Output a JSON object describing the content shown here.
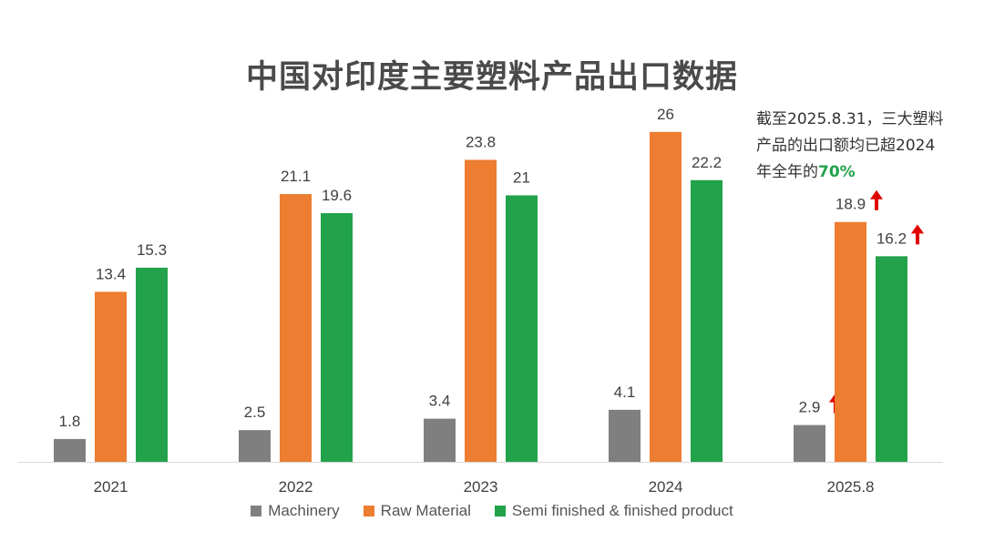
{
  "title": "中国对印度主要塑料产品出口数据",
  "annotation": {
    "line1": "截至2025.8.31，三大塑料",
    "line2": "产品的出口额均已超2024",
    "line3_prefix": "年全年的",
    "highlight": "70%"
  },
  "colors": {
    "machinery": "#7f7f7f",
    "raw_material": "#ed7d31",
    "semi_finished": "#22a24a",
    "arrow": "#e00000",
    "highlight": "#22a24a"
  },
  "chart_data": {
    "type": "bar",
    "categories": [
      "2021",
      "2022",
      "2023",
      "2024",
      "2025.8"
    ],
    "series": [
      {
        "name": "Machinery",
        "values": [
          1.8,
          2.5,
          3.4,
          4.1,
          2.9
        ]
      },
      {
        "name": "Raw Material",
        "values": [
          13.4,
          21.1,
          23.8,
          26,
          18.9
        ]
      },
      {
        "name": "Semi finished & finished product",
        "values": [
          15.3,
          19.6,
          21,
          22.2,
          16.2
        ]
      }
    ],
    "title": "中国对印度主要塑料产品出口数据",
    "xlabel": "",
    "ylabel": "",
    "ylim": [
      0,
      26
    ],
    "grid": false,
    "legend": "bottom",
    "up_arrows": {
      "category": "2025.8",
      "series": [
        "Machinery",
        "Raw Material",
        "Semi finished & finished product"
      ]
    }
  }
}
